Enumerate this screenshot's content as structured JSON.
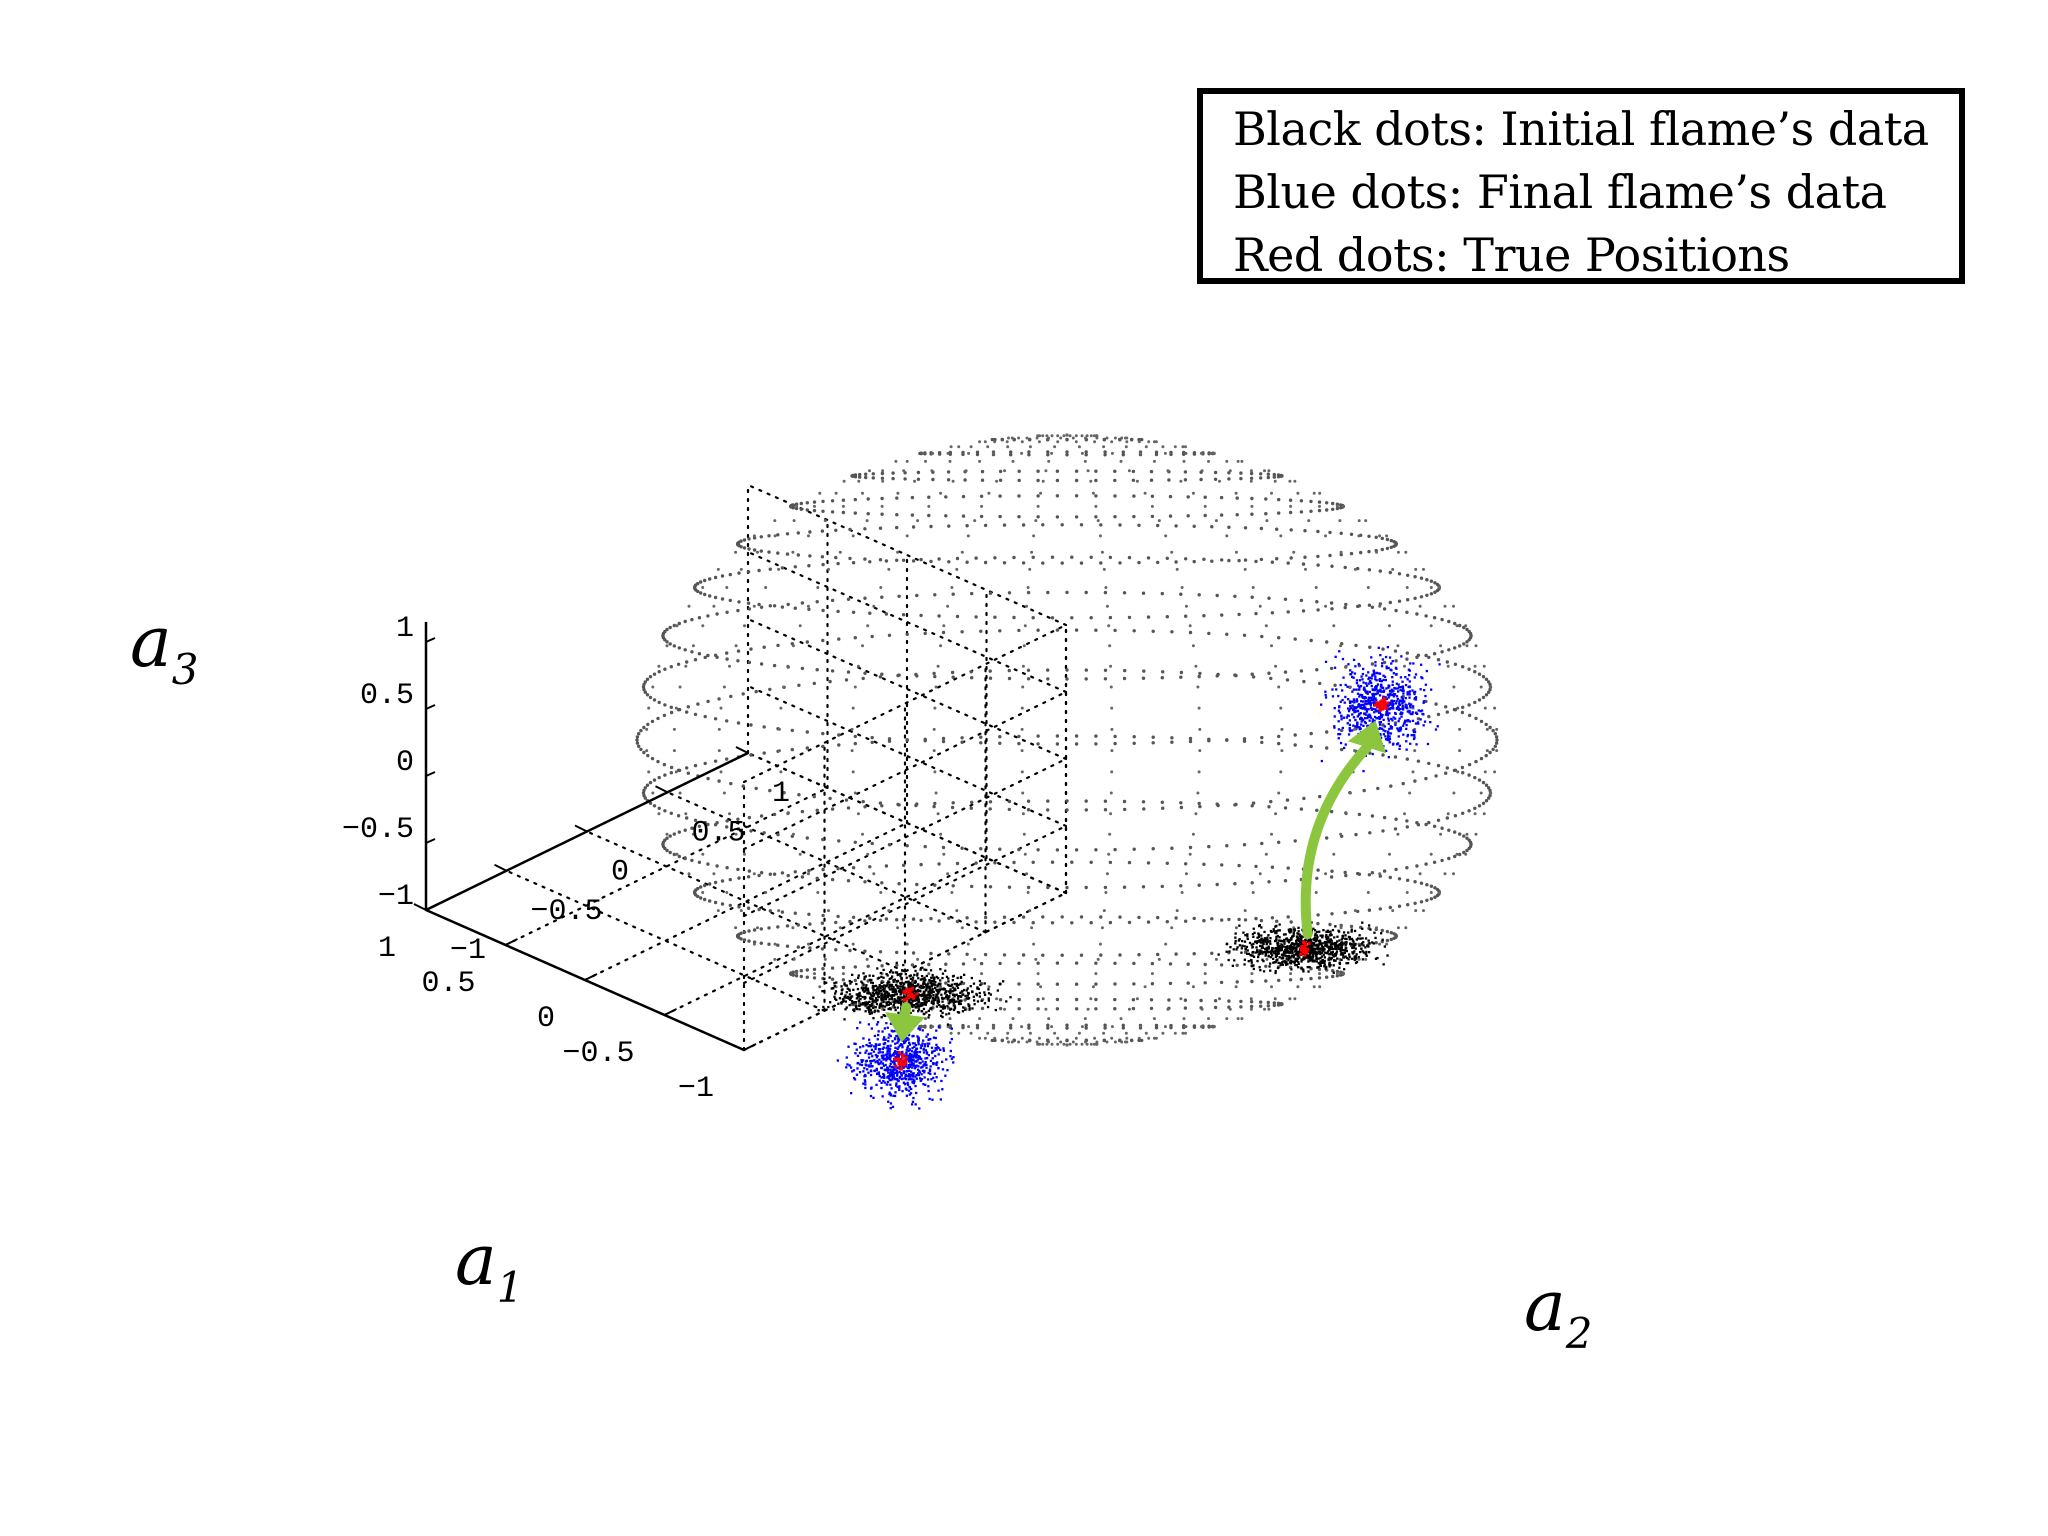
{
  "chart_data": {
    "type": "scatter",
    "dimensions": 3,
    "axes": {
      "x": {
        "label": "a",
        "subscript": "1",
        "ticks": [
          "1",
          "0.5",
          "0",
          "−0.5",
          "−1"
        ],
        "range": [
          -1,
          1
        ]
      },
      "y": {
        "label": "a",
        "subscript": "2",
        "ticks": [
          "1",
          "0.5",
          "0",
          "−0.5",
          "−1"
        ],
        "range": [
          -1,
          1
        ]
      },
      "z": {
        "label": "a",
        "subscript": "3",
        "ticks": [
          "1",
          "0.5",
          "0",
          "−0.5",
          "−1"
        ],
        "range": [
          -1,
          1
        ]
      }
    },
    "grid": true,
    "surface": "unit sphere drawn as dotted latitude/longitude points",
    "legend": {
      "placement": "top-right",
      "entries": [
        "Black dots: Initial flame’s data",
        "Blue dots: Final flame’s data",
        "Red dots: True Positions"
      ]
    },
    "series": [
      {
        "color": "#000000",
        "clusters": [
          {
            "a2": -0.37,
            "a3": -0.83
          },
          {
            "a2": 0.55,
            "a3": -0.68
          }
        ]
      },
      {
        "color": "#0000ff",
        "clusters": [
          {
            "a2": -0.39,
            "a3": -1.05
          },
          {
            "a2": 0.73,
            "a3": 0.12
          }
        ]
      },
      {
        "color": "#ff0000",
        "clusters": [
          {
            "a2": -0.37,
            "a3": -0.83
          },
          {
            "a2": -0.39,
            "a3": -1.05
          },
          {
            "a2": 0.55,
            "a3": -0.68
          },
          {
            "a2": 0.73,
            "a3": 0.12
          }
        ]
      }
    ],
    "transitions": [
      {
        "from": 0,
        "to": 0,
        "color": "#8cc63f"
      },
      {
        "from": 1,
        "to": 1,
        "color": "#8cc63f"
      }
    ]
  }
}
